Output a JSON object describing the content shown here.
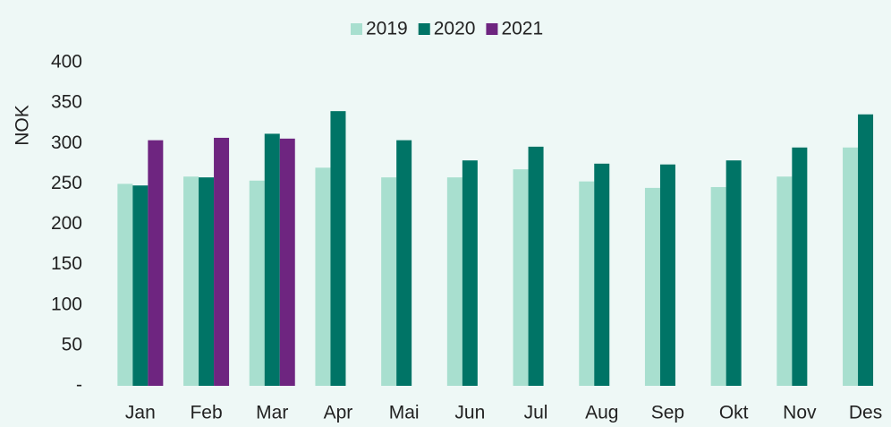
{
  "chart_data": {
    "type": "bar",
    "y_label": "NOK",
    "categories": [
      "Jan",
      "Feb",
      "Mar",
      "Apr",
      "Mai",
      "Jun",
      "Jul",
      "Aug",
      "Sep",
      "Okt",
      "Nov",
      "Des"
    ],
    "series": [
      {
        "name": "2019",
        "color": "#a8dfcf",
        "values": [
          250,
          259,
          254,
          270,
          258,
          258,
          268,
          253,
          245,
          246,
          259,
          295
        ]
      },
      {
        "name": "2020",
        "color": "#007466",
        "values": [
          248,
          258,
          312,
          340,
          304,
          279,
          296,
          275,
          274,
          279,
          295,
          336
        ]
      },
      {
        "name": "2021",
        "color": "#6e2580",
        "values": [
          304,
          307,
          306,
          null,
          null,
          null,
          null,
          null,
          null,
          null,
          null,
          null
        ]
      }
    ],
    "ylim": [
      0,
      400
    ],
    "yticks": [
      {
        "value": 0,
        "label": "-"
      },
      50,
      100,
      150,
      200,
      250,
      300,
      350,
      400
    ],
    "grid": false,
    "legend": "top"
  }
}
